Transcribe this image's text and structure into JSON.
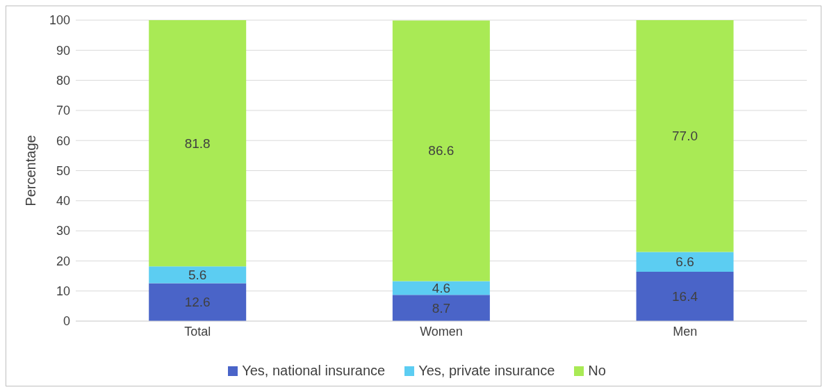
{
  "chart_data": {
    "type": "bar",
    "stacked": true,
    "ylabel": "Percentage",
    "categories": [
      "Total",
      "Women",
      "Men"
    ],
    "series": [
      {
        "name": "Yes, national insurance",
        "color": "#4a64c8",
        "values": [
          12.6,
          8.7,
          16.4
        ],
        "value_labels": [
          "12.6",
          "8.7",
          "16.4"
        ]
      },
      {
        "name": "Yes, private insurance",
        "color": "#5ccdf2",
        "values": [
          5.6,
          4.6,
          6.6
        ],
        "value_labels": [
          "5.6",
          "4.6",
          "6.6"
        ]
      },
      {
        "name": "No",
        "color": "#a9ea55",
        "values": [
          81.8,
          86.6,
          77.0
        ],
        "value_labels": [
          "81.8",
          "86.6",
          "77.0"
        ]
      }
    ],
    "ylim": [
      0,
      100
    ],
    "yticks": [
      0,
      10,
      20,
      30,
      40,
      50,
      60,
      70,
      80,
      90,
      100
    ],
    "grid": "y",
    "legend": "bottom"
  }
}
